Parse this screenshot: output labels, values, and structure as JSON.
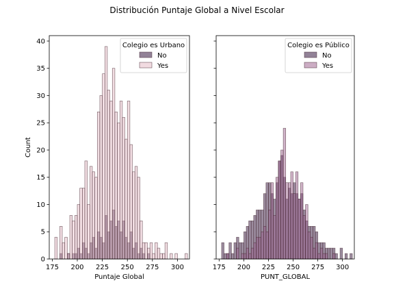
{
  "figure": {
    "title": "Distribución Puntaje Global a Nivel Escolar"
  },
  "chart_data": [
    {
      "type": "bar",
      "subtype": "overlaid histogram",
      "xlabel": "Puntaje Global",
      "ylabel": "Count",
      "xlim": [
        172,
        312
      ],
      "ylim": [
        0,
        41
      ],
      "xticks": [
        175,
        200,
        225,
        250,
        275,
        300
      ],
      "yticks": [
        0,
        5,
        10,
        15,
        20,
        25,
        30,
        35,
        40
      ],
      "bin_width": 2.5,
      "legend": {
        "title": "Colegio es Urbano",
        "position": "top-right"
      },
      "series": [
        {
          "name": "No",
          "color": "#4a2f52",
          "bins": [
            182.5,
            190,
            195,
            197.5,
            200,
            202.5,
            205,
            207.5,
            210,
            212.5,
            215,
            217.5,
            220,
            222.5,
            225,
            227.5,
            230,
            232.5,
            235,
            237.5,
            240,
            242.5,
            245,
            247.5,
            250,
            252.5,
            255,
            257.5,
            260,
            262.5,
            265,
            270
          ],
          "values": [
            1,
            1,
            1,
            1,
            2,
            1,
            3,
            2,
            1,
            3,
            4,
            2,
            5,
            4,
            3,
            8,
            5,
            7,
            9,
            6,
            7,
            5,
            7,
            4,
            3,
            5,
            2,
            3,
            1,
            2,
            1,
            1
          ]
        },
        {
          "name": "Yes",
          "color": "#e4b8c4",
          "bins": [
            177.5,
            182.5,
            185,
            187.5,
            190,
            192.5,
            195,
            197.5,
            200,
            202.5,
            205,
            207.5,
            210,
            212.5,
            215,
            217.5,
            220,
            222.5,
            225,
            227.5,
            230,
            232.5,
            235,
            237.5,
            240,
            242.5,
            245,
            247.5,
            250,
            252.5,
            255,
            257.5,
            260,
            262.5,
            265,
            267.5,
            270,
            272.5,
            275,
            277.5,
            280,
            282.5,
            285,
            287.5,
            292.5,
            297.5,
            307.5
          ],
          "values": [
            4,
            6,
            3,
            4,
            1,
            8,
            7,
            8,
            10,
            13,
            13,
            18,
            10,
            17,
            16,
            15,
            27,
            30,
            34,
            39,
            31,
            29,
            35,
            27,
            25,
            29,
            26,
            22,
            29,
            21,
            16,
            17,
            15,
            7,
            3,
            3,
            2,
            3,
            1,
            3,
            2,
            1,
            1,
            3,
            1,
            1,
            1
          ]
        }
      ]
    },
    {
      "type": "bar",
      "subtype": "overlaid histogram",
      "xlabel": "PUNT_GLOBAL",
      "ylabel": "",
      "xlim": [
        172,
        312
      ],
      "ylim": [
        0,
        41
      ],
      "xticks": [
        175,
        200,
        225,
        250,
        275,
        300
      ],
      "yticks": [
        0,
        5,
        10,
        15,
        20,
        25,
        30,
        35,
        40
      ],
      "bin_width": 2.5,
      "legend": {
        "title": "Colegio es Público",
        "position": "top-right"
      },
      "series": [
        {
          "name": "No",
          "color": "#4a2f52",
          "bins": [
            177.5,
            180,
            182.5,
            185,
            187.5,
            190,
            192.5,
            195,
            197.5,
            200,
            202.5,
            205,
            207.5,
            210,
            212.5,
            215,
            217.5,
            220,
            222.5,
            225,
            227.5,
            230,
            232.5,
            235,
            237.5,
            240,
            242.5,
            245,
            247.5,
            250,
            252.5,
            255,
            257.5,
            260,
            262.5,
            265,
            267.5,
            270,
            272.5,
            275,
            277.5,
            280,
            282.5,
            285,
            287.5,
            290,
            292.5,
            297.5,
            302.5,
            307.5
          ],
          "values": [
            3,
            1,
            1,
            3,
            1,
            3,
            4,
            3,
            3,
            5,
            6,
            7,
            7,
            8,
            9,
            9,
            9,
            12,
            14,
            14,
            12,
            11,
            14,
            18,
            19,
            15,
            11,
            13,
            12,
            14,
            12,
            11,
            12,
            9,
            7,
            6,
            6,
            6,
            5,
            3,
            3,
            3,
            2,
            2,
            2,
            2,
            1,
            2,
            1,
            1
          ]
        },
        {
          "name": "Yes",
          "color": "#9a5c8a",
          "bins": [
            182.5,
            192.5,
            197.5,
            200,
            202.5,
            205,
            207.5,
            210,
            212.5,
            215,
            217.5,
            220,
            222.5,
            225,
            227.5,
            230,
            232.5,
            235,
            237.5,
            240,
            242.5,
            245,
            247.5,
            250,
            252.5,
            255,
            257.5,
            260,
            262.5,
            265,
            267.5,
            270,
            272.5,
            275,
            277.5,
            280,
            282.5,
            290
          ],
          "values": [
            1,
            2,
            1,
            1,
            2,
            1,
            2,
            3,
            4,
            4,
            5,
            6,
            5,
            9,
            14,
            8,
            15,
            18,
            20,
            24,
            14,
            14,
            16,
            12,
            16,
            11,
            14,
            8,
            10,
            5,
            4,
            2,
            3,
            1,
            2,
            1,
            1,
            1
          ]
        }
      ]
    }
  ]
}
